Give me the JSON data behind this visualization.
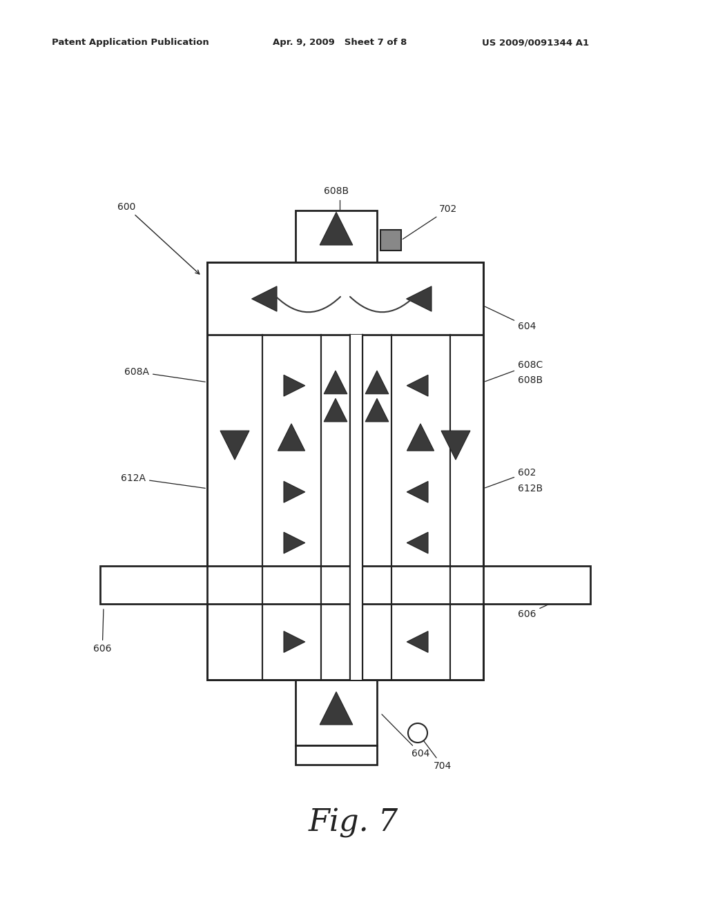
{
  "bg_color": "#ffffff",
  "line_color": "#222222",
  "header_text": "Patent Application Publication",
  "header_date": "Apr. 9, 2009   Sheet 7 of 8",
  "header_patent": "US 2009/0091344 A1",
  "fig_label": "Fig. 7",
  "arrow_color": "#3a3a3a",
  "arrow_edge": "#222222"
}
